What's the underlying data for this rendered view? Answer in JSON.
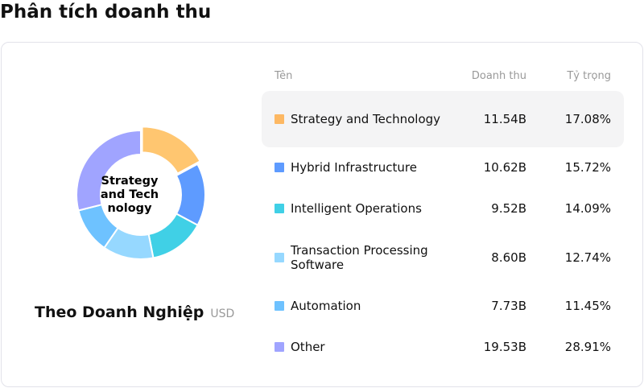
{
  "title": "Phân tích doanh thu",
  "chart": {
    "center_label": "Strategy and Technology",
    "subtitle": "Theo Doanh Nghiệp",
    "unit": "USD",
    "highlighted": 0
  },
  "headers": {
    "name": "Tên",
    "revenue": "Doanh thu",
    "share": "Tỷ trọng"
  },
  "chart_data": {
    "type": "pie",
    "donut": true,
    "categories": [
      "Strategy and Technology",
      "Hybrid Infrastructure",
      "Intelligent Operations",
      "Transaction Processing Software",
      "Automation",
      "Other"
    ],
    "values": [
      11.54,
      10.62,
      9.52,
      8.6,
      7.73,
      19.53
    ],
    "shares": [
      17.08,
      15.72,
      14.09,
      12.74,
      11.45,
      28.91
    ],
    "colors": [
      "#FFC670",
      "#5E9BFF",
      "#40D0E6",
      "#96D8FF",
      "#6EC2FF",
      "#A0A4FF"
    ]
  },
  "rows": [
    {
      "name": "Strategy and Technology",
      "revenue": "11.54B",
      "share": "17.08%",
      "color": "#FDB863"
    },
    {
      "name": "Hybrid Infrastructure",
      "revenue": "10.62B",
      "share": "15.72%",
      "color": "#5E9BFF"
    },
    {
      "name": "Intelligent Operations",
      "revenue": "9.52B",
      "share": "14.09%",
      "color": "#40D0E6"
    },
    {
      "name": "Transaction Processing Software",
      "revenue": "8.60B",
      "share": "12.74%",
      "color": "#96D8FF"
    },
    {
      "name": "Automation",
      "revenue": "7.73B",
      "share": "11.45%",
      "color": "#6EC2FF"
    },
    {
      "name": "Other",
      "revenue": "19.53B",
      "share": "28.91%",
      "color": "#A0A4FF"
    }
  ]
}
